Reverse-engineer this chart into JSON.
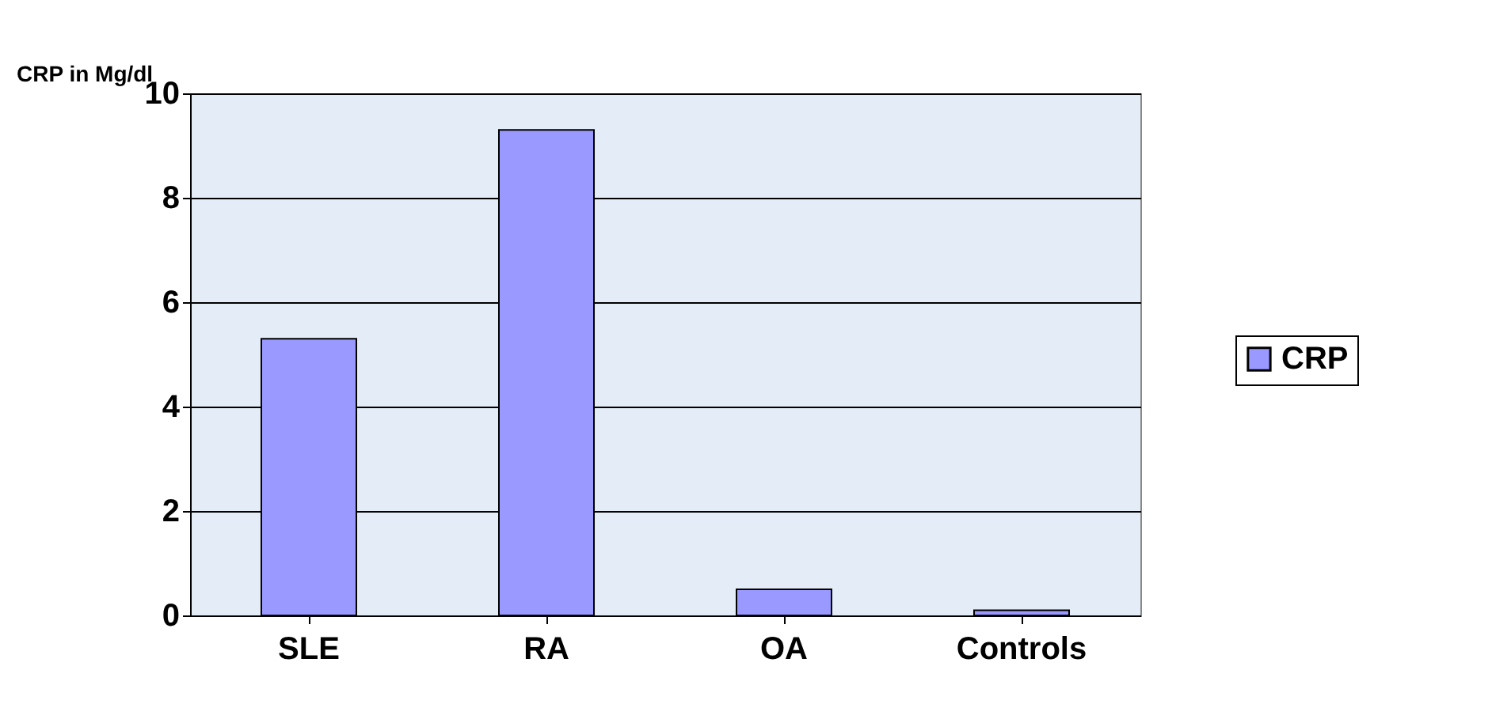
{
  "chart_data": {
    "type": "bar",
    "ylabel": "CRP in Mg/dl",
    "categories": [
      "SLE",
      "RA",
      "OA",
      "Controls"
    ],
    "series": [
      {
        "name": "CRP",
        "color": "#9999ff",
        "values": [
          5.3,
          9.3,
          0.5,
          0.1
        ]
      }
    ],
    "ylim": [
      0,
      10
    ],
    "yticks": [
      0,
      2,
      4,
      6,
      8,
      10
    ],
    "grid": "y",
    "legend": "right"
  }
}
